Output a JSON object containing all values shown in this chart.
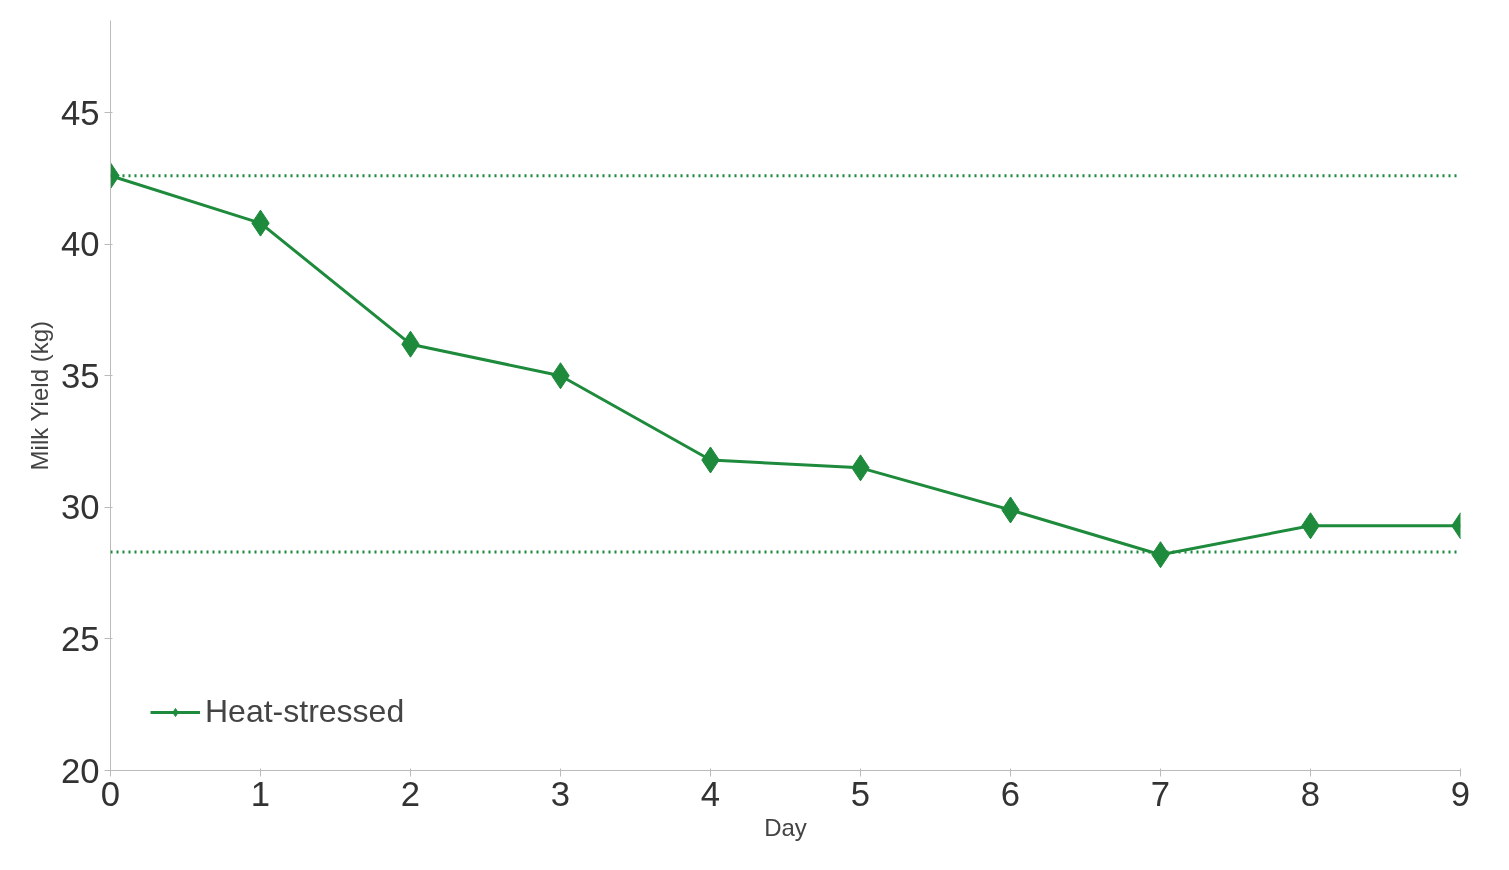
{
  "chart_data": {
    "type": "line",
    "xlabel": "Day",
    "ylabel": "Milk Yield (kg)",
    "x": [
      0,
      1,
      2,
      3,
      4,
      5,
      6,
      7,
      8,
      9
    ],
    "series": [
      {
        "name": "Heat-stressed",
        "color": "#1e8a3c",
        "values": [
          42.6,
          40.8,
          36.2,
          35.0,
          31.8,
          31.5,
          29.9,
          28.2,
          29.3,
          29.3
        ]
      }
    ],
    "xlim": [
      0,
      9
    ],
    "xticks": [
      0,
      1,
      2,
      3,
      4,
      5,
      6,
      7,
      8,
      9
    ],
    "ylim": [
      20,
      48.5
    ],
    "yticks": [
      20,
      25,
      30,
      35,
      40,
      45
    ],
    "ref_lines": [
      {
        "axis": "y",
        "value": 42.6,
        "color": "#1e8a3c",
        "line_style": "dotted"
      },
      {
        "axis": "y",
        "value": 28.3,
        "color": "#1e8a3c",
        "line_style": "dotted"
      }
    ],
    "grid": false,
    "legend": "bottom left",
    "marker": "diamond",
    "line_style": "solid"
  }
}
